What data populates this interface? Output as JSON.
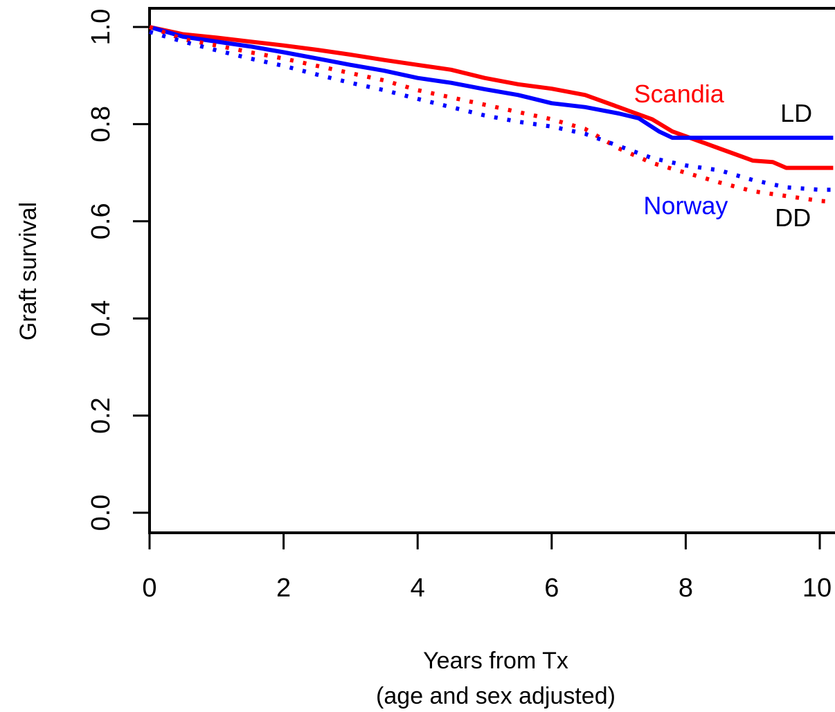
{
  "chart_data": {
    "type": "line",
    "title": "",
    "xlabel": "Years from Tx",
    "xlabel_sub": "(age and sex adjusted)",
    "ylabel": "Graft survival",
    "xlim": [
      0,
      10.2
    ],
    "ylim": [
      0,
      1.05
    ],
    "x_ticks": [
      "0",
      "2",
      "4",
      "6",
      "8",
      "10"
    ],
    "y_ticks": [
      "0.0",
      "0.2",
      "0.4",
      "0.6",
      "0.8",
      "1.0"
    ],
    "grid": false,
    "legend": "none",
    "annotations": [
      {
        "text": "Scandia",
        "color": "#ff0000",
        "x": 7.9,
        "y": 0.845
      },
      {
        "text": "LD",
        "color": "#000000",
        "x": 9.65,
        "y": 0.805
      },
      {
        "text": "Norway",
        "color": "#0000ff",
        "x": 8.0,
        "y": 0.615
      },
      {
        "text": "DD",
        "color": "#000000",
        "x": 9.6,
        "y": 0.59
      }
    ],
    "series": [
      {
        "id": "scandia-ld",
        "color": "#ff0000",
        "style": "solid",
        "x": [
          0,
          0.5,
          1,
          1.5,
          2,
          2.5,
          3,
          3.5,
          4,
          4.5,
          5,
          5.5,
          6,
          6.5,
          7,
          7.2,
          7.5,
          7.8,
          8,
          8.2,
          8.5,
          8.8,
          9,
          9.3,
          9.5,
          10,
          10.2
        ],
        "y": [
          1.0,
          0.985,
          0.978,
          0.97,
          0.962,
          0.953,
          0.943,
          0.932,
          0.922,
          0.912,
          0.895,
          0.882,
          0.873,
          0.86,
          0.835,
          0.825,
          0.81,
          0.785,
          0.775,
          0.765,
          0.75,
          0.735,
          0.725,
          0.722,
          0.71,
          0.71,
          0.71
        ]
      },
      {
        "id": "norway-ld",
        "color": "#0000ff",
        "style": "solid",
        "x": [
          0,
          0.5,
          1,
          1.5,
          2,
          2.5,
          3,
          3.5,
          4,
          4.5,
          5,
          5.5,
          6,
          6.5,
          7,
          7.3,
          7.6,
          7.8,
          8,
          8.5,
          9,
          9.5,
          10,
          10.2
        ],
        "y": [
          1.0,
          0.98,
          0.97,
          0.96,
          0.948,
          0.935,
          0.922,
          0.91,
          0.895,
          0.885,
          0.872,
          0.86,
          0.843,
          0.835,
          0.822,
          0.812,
          0.785,
          0.772,
          0.772,
          0.772,
          0.772,
          0.772,
          0.772,
          0.772
        ]
      },
      {
        "id": "scandia-dd",
        "color": "#ff0000",
        "style": "dotted",
        "x": [
          0,
          0.5,
          1,
          1.5,
          2,
          2.5,
          3,
          3.5,
          4,
          4.5,
          5,
          5.5,
          6,
          6.5,
          7,
          7.5,
          8,
          8.5,
          9,
          9.5,
          10,
          10.2
        ],
        "y": [
          1.0,
          0.975,
          0.962,
          0.948,
          0.935,
          0.92,
          0.905,
          0.89,
          0.87,
          0.855,
          0.84,
          0.825,
          0.81,
          0.79,
          0.75,
          0.72,
          0.7,
          0.68,
          0.662,
          0.652,
          0.642,
          0.64
        ]
      },
      {
        "id": "norway-dd",
        "color": "#0000ff",
        "style": "dotted",
        "x": [
          0,
          0.5,
          1,
          1.5,
          2,
          2.5,
          3,
          3.5,
          4,
          4.5,
          5,
          5.5,
          6,
          6.5,
          7,
          7.5,
          8,
          8.5,
          9,
          9.5,
          10,
          10.2
        ],
        "y": [
          0.99,
          0.97,
          0.952,
          0.935,
          0.92,
          0.902,
          0.885,
          0.87,
          0.852,
          0.835,
          0.818,
          0.805,
          0.795,
          0.78,
          0.755,
          0.73,
          0.715,
          0.705,
          0.685,
          0.67,
          0.665,
          0.665
        ]
      }
    ]
  }
}
